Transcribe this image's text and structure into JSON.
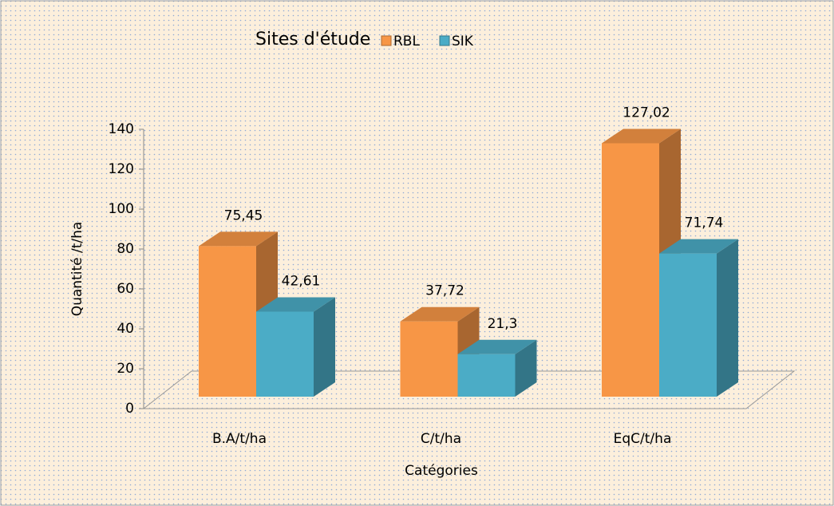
{
  "chart_data": {
    "type": "bar3d",
    "legend_title": "Sites d'étude",
    "categories": [
      "B.A/t/ha",
      "C/t/ha",
      "EqC/t/ha"
    ],
    "series": [
      {
        "name": "RBL",
        "color": "#f79646",
        "values": [
          75.45,
          37.72,
          127.02
        ],
        "value_labels": [
          "75,45",
          "37,72",
          "127,02"
        ]
      },
      {
        "name": "SIK",
        "color": "#4bacc6",
        "values": [
          42.61,
          21.3,
          71.74
        ],
        "value_labels": [
          "42,61",
          "21,3",
          "71,74"
        ]
      }
    ],
    "ylabel": "Quantité /t/ha",
    "xlabel": "Catégories",
    "ylim": [
      0,
      140
    ],
    "yticks": [
      0,
      20,
      40,
      60,
      80,
      100,
      120,
      140
    ]
  }
}
